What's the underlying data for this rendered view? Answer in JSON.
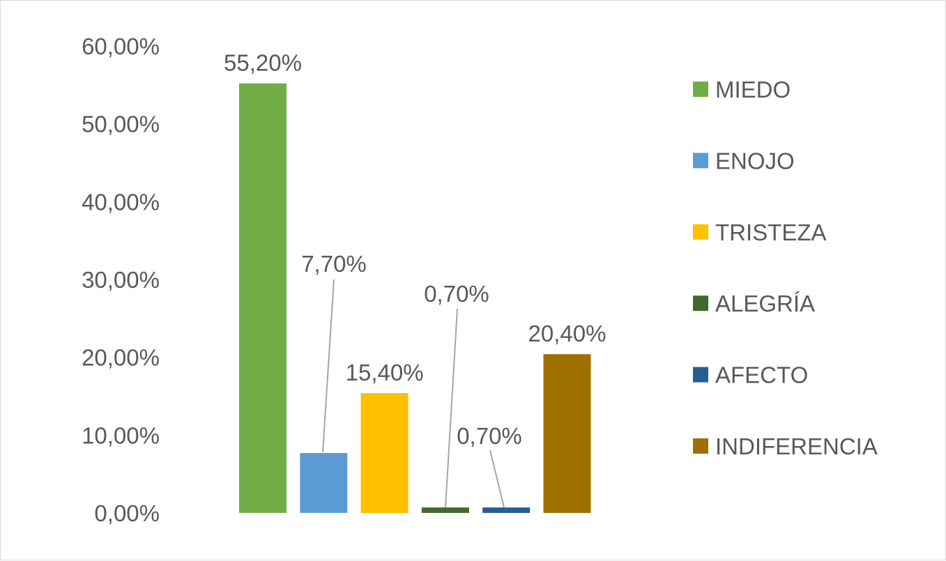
{
  "chart_data": {
    "type": "bar",
    "title": "",
    "xlabel": "",
    "ylabel": "",
    "categories": [
      "MIEDO",
      "ENOJO",
      "TRISTEZA",
      "ALEGRÍA",
      "AFECTO",
      "INDIFERENCIA"
    ],
    "values": [
      55.2,
      7.7,
      15.4,
      0.7,
      0.7,
      20.4
    ],
    "value_labels": [
      "55,20%",
      "7,70%",
      "15,40%",
      "0,70%",
      "0,70%",
      "20,40%"
    ],
    "colors": [
      "#70ad47",
      "#5b9bd5",
      "#ffc000",
      "#43682b",
      "#255e91",
      "#9e7000"
    ],
    "ylim": [
      0,
      60
    ],
    "yticks": [
      0,
      10,
      20,
      30,
      40,
      50,
      60
    ],
    "ytick_labels": [
      "0,00%",
      "10,00%",
      "20,00%",
      "30,00%",
      "40,00%",
      "50,00%",
      "60,00%"
    ],
    "grid": false,
    "legend_position": "right",
    "leader_lines": [
      false,
      true,
      false,
      true,
      true,
      false
    ],
    "leader_line_color": "#a6a6a6"
  }
}
